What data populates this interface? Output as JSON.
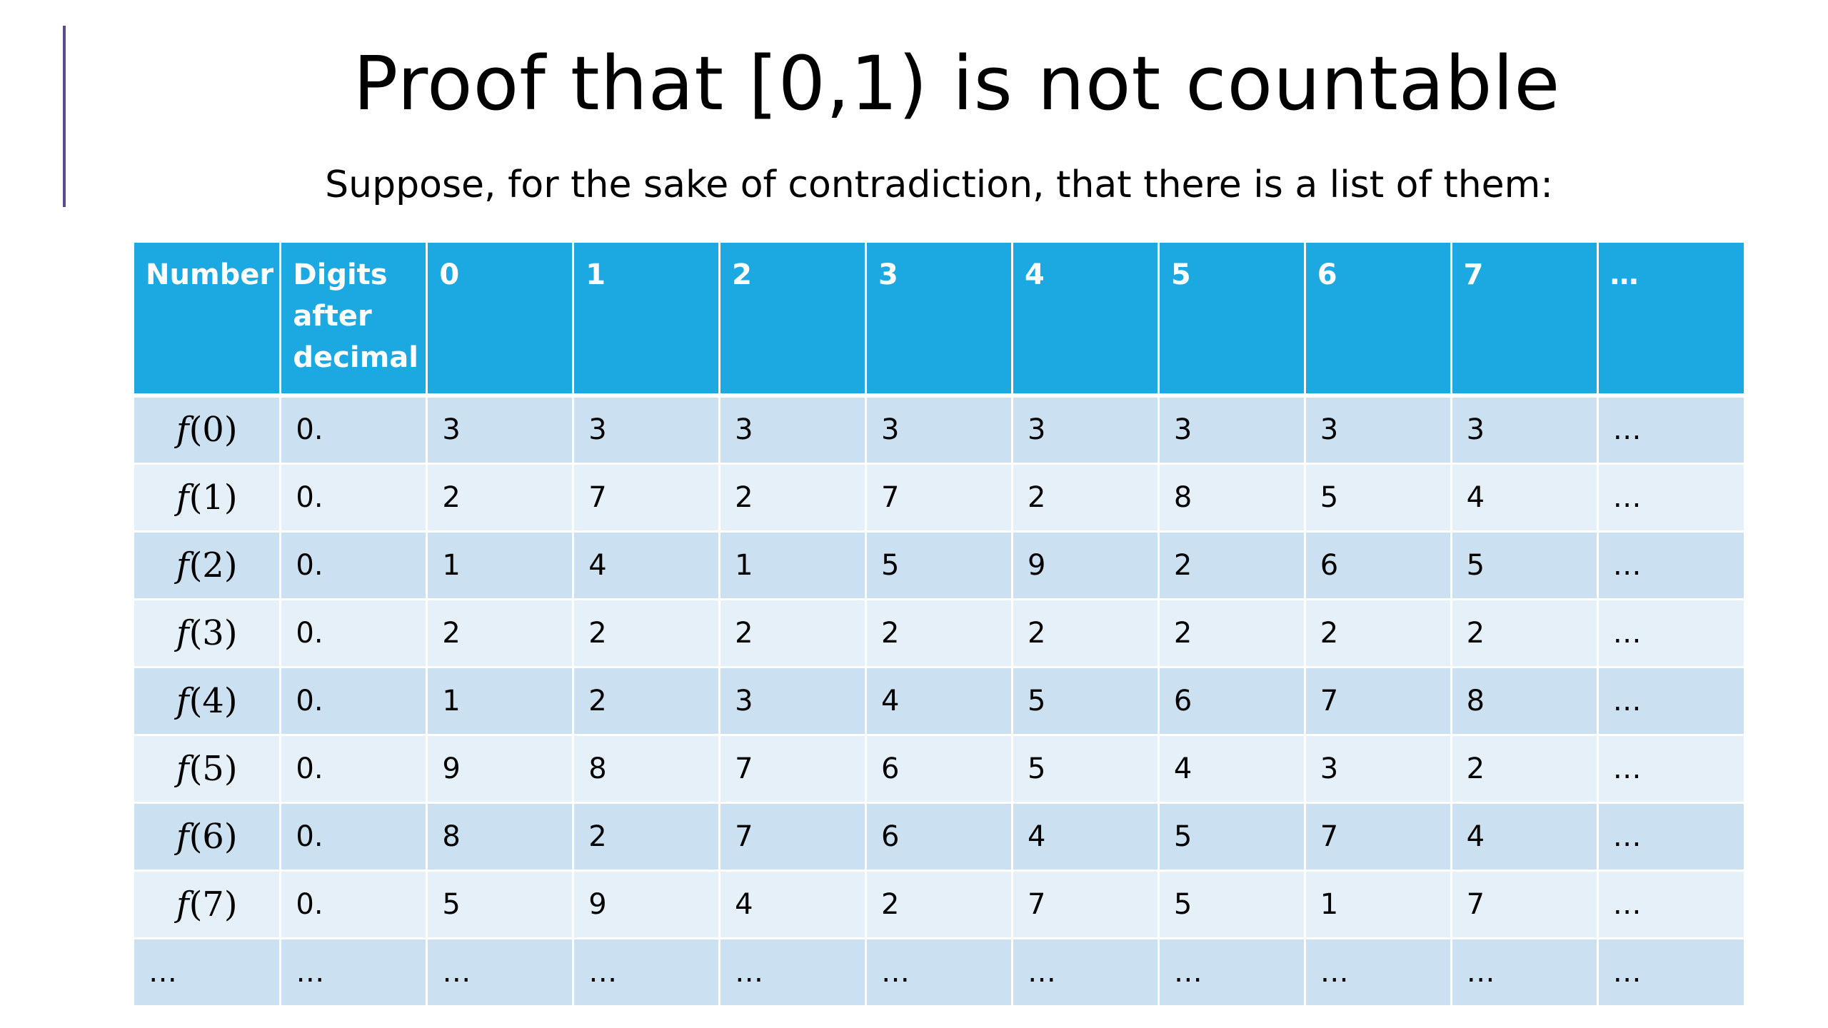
{
  "slide": {
    "title": "Proof that [0,1) is not countable",
    "subtitle": "Suppose, for the sake of contradiction, that there is a list of them:",
    "accent_color": "#5b4a8e",
    "header_color": "#1ca8e1"
  },
  "table": {
    "headers": [
      "Number",
      "Digits after decimal",
      "0",
      "1",
      "2",
      "3",
      "4",
      "5",
      "6",
      "7",
      "…"
    ],
    "rows": [
      {
        "fn": "f",
        "arg": "(0)",
        "prefix": "0.",
        "digits": [
          "3",
          "3",
          "3",
          "3",
          "3",
          "3",
          "3",
          "3"
        ],
        "more": "…"
      },
      {
        "fn": "f",
        "arg": "(1)",
        "prefix": "0.",
        "digits": [
          "2",
          "7",
          "2",
          "7",
          "2",
          "8",
          "5",
          "4"
        ],
        "more": "…"
      },
      {
        "fn": "f",
        "arg": "(2)",
        "prefix": "0.",
        "digits": [
          "1",
          "4",
          "1",
          "5",
          "9",
          "2",
          "6",
          "5"
        ],
        "more": "…"
      },
      {
        "fn": "f",
        "arg": "(3)",
        "prefix": "0.",
        "digits": [
          "2",
          "2",
          "2",
          "2",
          "2",
          "2",
          "2",
          "2"
        ],
        "more": "…"
      },
      {
        "fn": "f",
        "arg": "(4)",
        "prefix": "0.",
        "digits": [
          "1",
          "2",
          "3",
          "4",
          "5",
          "6",
          "7",
          "8"
        ],
        "more": "…"
      },
      {
        "fn": "f",
        "arg": "(5)",
        "prefix": "0.",
        "digits": [
          "9",
          "8",
          "7",
          "6",
          "5",
          "4",
          "3",
          "2"
        ],
        "more": "…"
      },
      {
        "fn": "f",
        "arg": "(6)",
        "prefix": "0.",
        "digits": [
          "8",
          "2",
          "7",
          "6",
          "4",
          "5",
          "7",
          "4"
        ],
        "more": "…"
      },
      {
        "fn": "f",
        "arg": "(7)",
        "prefix": "0.",
        "digits": [
          "5",
          "9",
          "4",
          "2",
          "7",
          "5",
          "1",
          "7"
        ],
        "more": "…"
      }
    ],
    "last_row": [
      "…",
      "…",
      "…",
      "…",
      "…",
      "…",
      "…",
      "…",
      "…",
      "…",
      "…"
    ]
  }
}
